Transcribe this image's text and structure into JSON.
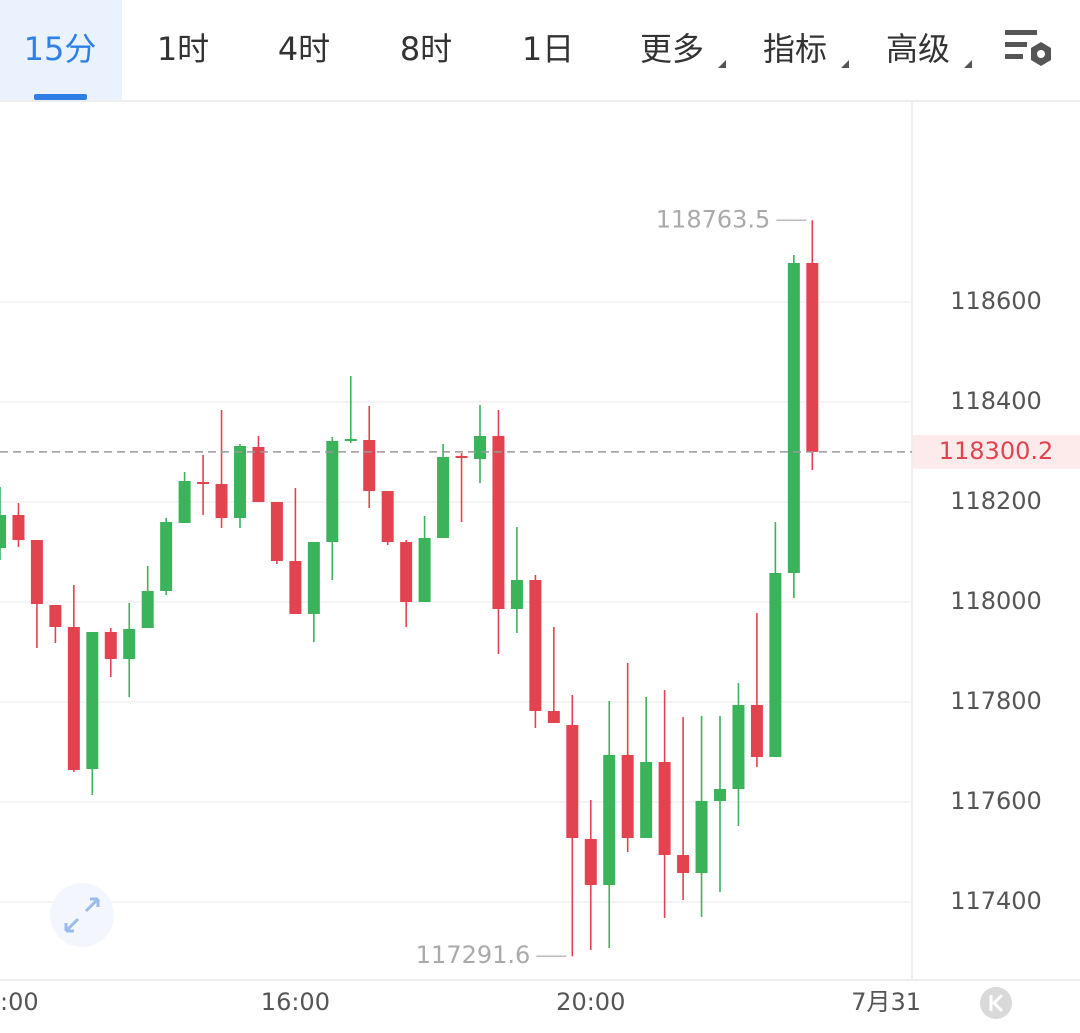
{
  "tabs": [
    {
      "label": "15分",
      "dropdown": false
    },
    {
      "label": "1时",
      "dropdown": false
    },
    {
      "label": "4时",
      "dropdown": false
    },
    {
      "label": "8时",
      "dropdown": false
    },
    {
      "label": "1日",
      "dropdown": false
    },
    {
      "label": "更多",
      "dropdown": true
    },
    {
      "label": "指标",
      "dropdown": true
    },
    {
      "label": "高级",
      "dropdown": true
    }
  ],
  "active_tab": 0,
  "chart_data": {
    "type": "candlestick",
    "x": [
      0,
      1,
      2,
      3,
      4,
      5,
      6,
      7,
      8,
      9,
      10,
      11,
      12,
      13,
      14,
      15,
      16,
      17,
      18,
      19,
      20,
      21,
      22,
      23,
      24,
      25,
      26,
      27,
      28,
      29,
      30,
      31,
      32,
      33,
      34,
      35,
      36,
      37,
      38,
      39,
      40,
      41,
      42,
      43,
      44
    ],
    "open": [
      118108,
      118174,
      118124,
      117994,
      117950,
      117666,
      117940,
      117886,
      117948,
      118022,
      118158,
      118240,
      118236,
      118168,
      118310,
      118200,
      118082,
      117976,
      118120,
      118322,
      118324,
      118222,
      118120,
      118000,
      118128,
      118292,
      118286,
      118332,
      117986,
      118044,
      117782,
      117754,
      117526,
      117434,
      117694,
      117528,
      117680,
      117494,
      117458,
      117602,
      117626,
      117794,
      117690,
      118058,
      118678
    ],
    "high": [
      118230,
      118198,
      118124,
      117994,
      118034,
      117940,
      117948,
      117998,
      118072,
      118168,
      118260,
      118294,
      118384,
      118316,
      118332,
      118200,
      118228,
      118120,
      118330,
      118452,
      118392,
      118222,
      118124,
      118172,
      118316,
      118298,
      118394,
      118384,
      118150,
      118054,
      117950,
      117814,
      117604,
      117802,
      117878,
      117810,
      117824,
      117770,
      117772,
      117772,
      117838,
      117978,
      118160,
      118694,
      118763.5
    ],
    "low": [
      118084,
      118110,
      117908,
      117918,
      117660,
      117614,
      117850,
      117810,
      117948,
      118014,
      118158,
      118174,
      118148,
      118148,
      118200,
      118076,
      117976,
      117920,
      118044,
      118318,
      118188,
      118114,
      117950,
      118000,
      118128,
      118160,
      118238,
      117896,
      117938,
      117748,
      117758,
      117291.6,
      117304,
      117308,
      117500,
      117528,
      117368,
      117404,
      117370,
      117420,
      117552,
      117670,
      117690,
      118008,
      118264
    ],
    "close": [
      118174,
      118124,
      117996,
      117950,
      117664,
      117940,
      117886,
      117946,
      118022,
      118160,
      118242,
      118236,
      118168,
      118312,
      118200,
      118082,
      117976,
      118120,
      118322,
      118326,
      118222,
      118120,
      118000,
      118128,
      118290,
      118288,
      118332,
      117986,
      118044,
      117782,
      117758,
      117528,
      117434,
      117694,
      117528,
      117680,
      117494,
      117458,
      117602,
      117626,
      117794,
      117690,
      118058,
      118678,
      118300.2
    ],
    "up_color": "#3bb35a",
    "down_color": "#e3434f",
    "xlim": [
      0,
      49.4
    ],
    "xticks": [
      {
        "value": 0,
        "label": ":00"
      },
      {
        "value": 16,
        "label": "16:00"
      },
      {
        "value": 32,
        "label": "20:00"
      },
      {
        "value": 48,
        "label": "7月31"
      }
    ],
    "ylim": [
      117244,
      119004
    ],
    "yticks": [
      117400,
      117600,
      117800,
      118000,
      118200,
      118400,
      118600
    ],
    "grid": true
  }
}
